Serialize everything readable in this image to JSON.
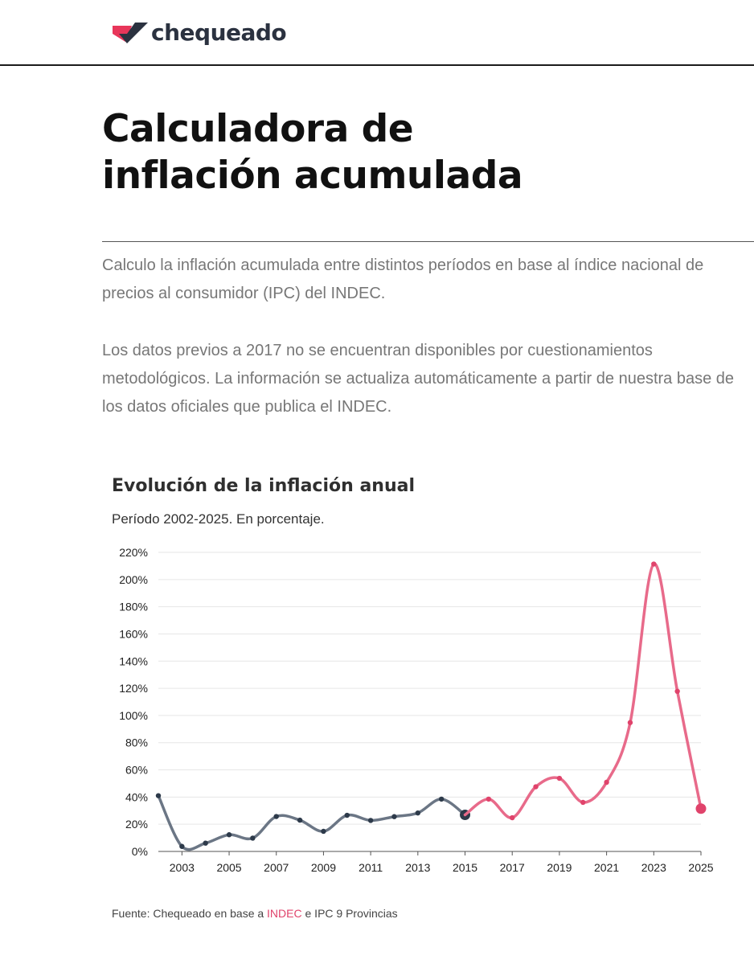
{
  "header": {
    "logo_text": "chequeado",
    "logo_icon": "check-mark-logo-icon"
  },
  "page": {
    "title_line1": "Calculadora de",
    "title_line2": "inflación acumulada",
    "intro_paragraph_1": "Calculo la inflación acumulada entre distintos períodos en base al índice nacional de precios al consumidor (IPC) del INDEC.",
    "intro_paragraph_2": "Los datos previos a 2017 no se encuentran disponibles por cuestionamientos metodológicos. La información se actualiza automáticamente a partir de nuestra base de los datos oficiales que publica el INDEC."
  },
  "source": {
    "prefix": "Fuente: Chequeado en base a ",
    "link_text": "INDEC",
    "suffix": " e IPC 9 Provincias"
  },
  "colors": {
    "series_9_provincias": "#6b7685",
    "series_indec": "#e86a8a",
    "accent_point": "#e0436b",
    "dark_point": "#2d3a4a"
  },
  "chart_data": {
    "type": "line",
    "title": "Evolución de la inflación anual",
    "subtitle": "Período 2002-2025. En porcentaje.",
    "xlabel": "",
    "ylabel": "",
    "ylim": [
      0,
      220
    ],
    "yticks": [
      "0%",
      "20%",
      "40%",
      "60%",
      "80%",
      "100%",
      "120%",
      "140%",
      "160%",
      "180%",
      "200%",
      "220%"
    ],
    "xlim": [
      2002,
      2025
    ],
    "xticks": [
      "2003",
      "2005",
      "2007",
      "2009",
      "2011",
      "2013",
      "2015",
      "2017",
      "2019",
      "2021",
      "2023",
      "2025"
    ],
    "grid": true,
    "series": [
      {
        "name": "IPC 9 Provincias",
        "x": [
          2002,
          2003,
          2004,
          2005,
          2006,
          2007,
          2008,
          2009,
          2010,
          2011,
          2012,
          2013,
          2014,
          2015
        ],
        "values": [
          41,
          3.7,
          6.1,
          12.3,
          9.8,
          25.7,
          23,
          14.8,
          26.6,
          22.8,
          25.6,
          28.3,
          38.5,
          26.9
        ]
      },
      {
        "name": "INDEC",
        "x": [
          2015,
          2016,
          2017,
          2018,
          2019,
          2020,
          2021,
          2022,
          2023,
          2024,
          2025
        ],
        "values": [
          26.9,
          38.5,
          24.8,
          47.6,
          53.8,
          36.1,
          50.9,
          94.8,
          211.4,
          117.8,
          31.5
        ]
      }
    ]
  }
}
